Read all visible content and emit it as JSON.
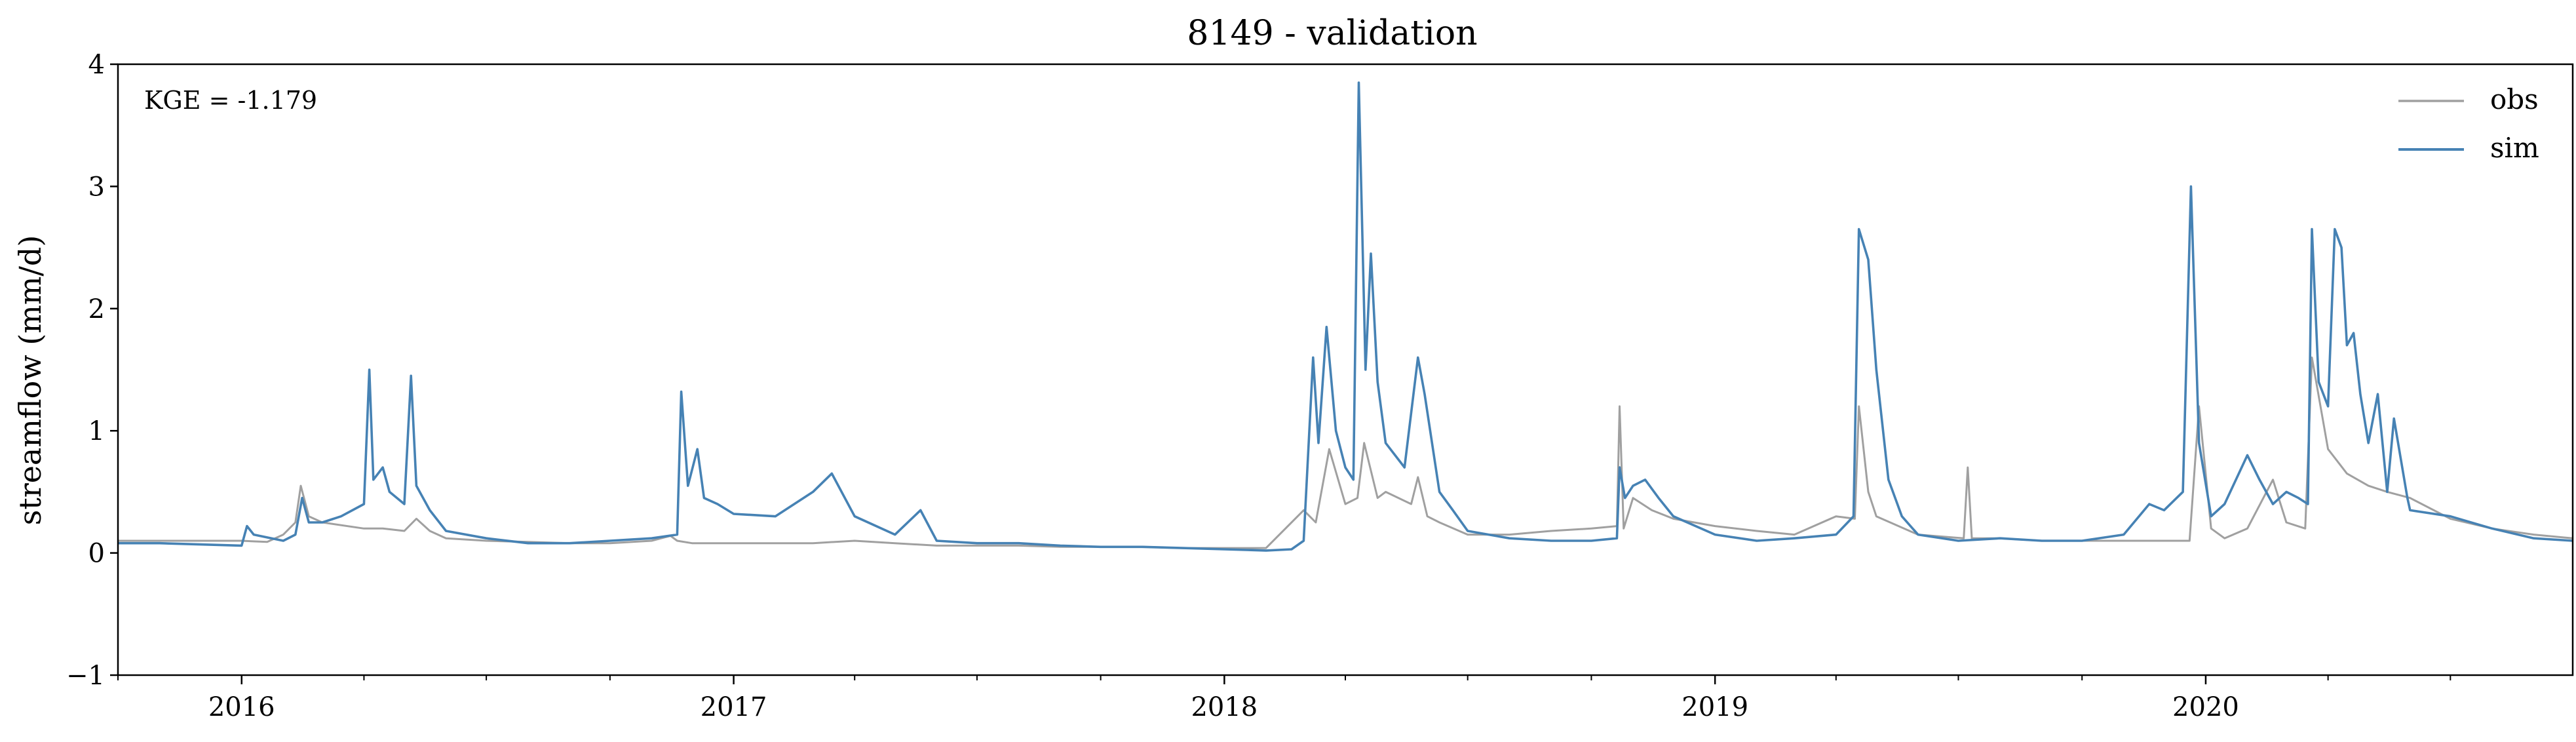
{
  "chart_data": {
    "type": "line",
    "title": "8149 - validation",
    "xlabel": "",
    "ylabel": "streamflow (mm/d)",
    "xlim": [
      "2015-10-01",
      "2020-09-30"
    ],
    "ylim": [
      -1,
      4
    ],
    "x_ticks": [
      "2016",
      "2017",
      "2018",
      "2019",
      "2020"
    ],
    "y_ticks": [
      "−1",
      "0",
      "1",
      "2",
      "3",
      "4"
    ],
    "annotation": "KGE = -1.179",
    "legend": {
      "position": "top-right",
      "entries": [
        "obs",
        "sim"
      ]
    },
    "grid": false,
    "series": [
      {
        "name": "obs",
        "color": "#a0a0a0",
        "x": [
          "2015-10-01",
          "2015-11-01",
          "2015-12-01",
          "2016-01-01",
          "2016-01-20",
          "2016-02-01",
          "2016-02-10",
          "2016-02-14",
          "2016-02-20",
          "2016-03-01",
          "2016-04-01",
          "2016-04-15",
          "2016-05-01",
          "2016-05-10",
          "2016-05-20",
          "2016-06-01",
          "2016-07-01",
          "2016-08-01",
          "2016-09-01",
          "2016-10-01",
          "2016-11-01",
          "2016-11-15",
          "2016-11-20",
          "2016-12-01",
          "2017-01-01",
          "2017-02-01",
          "2017-03-01",
          "2017-04-01",
          "2017-05-01",
          "2017-06-01",
          "2017-07-01",
          "2017-08-01",
          "2017-09-01",
          "2017-10-01",
          "2017-11-01",
          "2017-12-01",
          "2018-01-01",
          "2018-02-01",
          "2018-03-01",
          "2018-03-10",
          "2018-03-20",
          "2018-04-01",
          "2018-04-10",
          "2018-04-15",
          "2018-04-25",
          "2018-05-01",
          "2018-05-20",
          "2018-05-25",
          "2018-06-01",
          "2018-06-10",
          "2018-07-01",
          "2018-08-01",
          "2018-09-01",
          "2018-10-01",
          "2018-10-20",
          "2018-10-22",
          "2018-10-25",
          "2018-11-01",
          "2018-11-15",
          "2018-12-01",
          "2019-01-01",
          "2019-02-01",
          "2019-03-01",
          "2019-04-01",
          "2019-04-15",
          "2019-04-18",
          "2019-04-25",
          "2019-05-01",
          "2019-06-01",
          "2019-07-05",
          "2019-07-08",
          "2019-07-11",
          "2019-08-01",
          "2019-09-01",
          "2019-10-01",
          "2019-11-01",
          "2019-12-01",
          "2019-12-20",
          "2019-12-27",
          "2020-01-05",
          "2020-01-15",
          "2020-02-01",
          "2020-02-20",
          "2020-03-01",
          "2020-03-15",
          "2020-03-20",
          "2020-04-01",
          "2020-04-15",
          "2020-05-01",
          "2020-05-15",
          "2020-06-01",
          "2020-07-01",
          "2020-08-01",
          "2020-09-01",
          "2020-09-30"
        ],
        "y": [
          0.1,
          0.1,
          0.1,
          0.1,
          0.09,
          0.15,
          0.25,
          0.55,
          0.3,
          0.25,
          0.2,
          0.2,
          0.18,
          0.28,
          0.18,
          0.12,
          0.1,
          0.09,
          0.08,
          0.08,
          0.1,
          0.14,
          0.1,
          0.08,
          0.08,
          0.08,
          0.08,
          0.1,
          0.08,
          0.06,
          0.06,
          0.06,
          0.05,
          0.05,
          0.05,
          0.04,
          0.04,
          0.04,
          0.35,
          0.25,
          0.85,
          0.4,
          0.45,
          0.9,
          0.45,
          0.5,
          0.4,
          0.62,
          0.3,
          0.25,
          0.15,
          0.15,
          0.18,
          0.2,
          0.22,
          1.2,
          0.2,
          0.45,
          0.35,
          0.28,
          0.22,
          0.18,
          0.15,
          0.3,
          0.28,
          1.2,
          0.5,
          0.3,
          0.15,
          0.12,
          0.7,
          0.12,
          0.12,
          0.1,
          0.1,
          0.1,
          0.1,
          0.1,
          1.2,
          0.2,
          0.12,
          0.2,
          0.6,
          0.25,
          0.2,
          1.6,
          0.85,
          0.65,
          0.55,
          0.5,
          0.45,
          0.28,
          0.2,
          0.15,
          0.12
        ]
      },
      {
        "name": "sim",
        "color": "#4682b4",
        "x": [
          "2015-10-01",
          "2015-11-01",
          "2015-12-01",
          "2016-01-01",
          "2016-01-05",
          "2016-01-10",
          "2016-02-01",
          "2016-02-10",
          "2016-02-15",
          "2016-02-20",
          "2016-03-01",
          "2016-03-15",
          "2016-04-01",
          "2016-04-05",
          "2016-04-08",
          "2016-04-15",
          "2016-04-20",
          "2016-05-01",
          "2016-05-06",
          "2016-05-10",
          "2016-05-20",
          "2016-06-01",
          "2016-07-01",
          "2016-08-01",
          "2016-09-01",
          "2016-10-01",
          "2016-11-01",
          "2016-11-20",
          "2016-11-23",
          "2016-11-28",
          "2016-12-05",
          "2016-12-10",
          "2016-12-20",
          "2017-01-01",
          "2017-02-01",
          "2017-03-01",
          "2017-03-15",
          "2017-04-01",
          "2017-05-01",
          "2017-05-20",
          "2017-06-01",
          "2017-07-01",
          "2017-08-01",
          "2017-09-01",
          "2017-10-01",
          "2017-11-01",
          "2017-12-01",
          "2018-01-01",
          "2018-02-01",
          "2018-02-20",
          "2018-03-01",
          "2018-03-08",
          "2018-03-12",
          "2018-03-18",
          "2018-03-25",
          "2018-04-01",
          "2018-04-07",
          "2018-04-11",
          "2018-04-16",
          "2018-04-20",
          "2018-04-25",
          "2018-05-01",
          "2018-05-15",
          "2018-05-25",
          "2018-05-30",
          "2018-06-10",
          "2018-06-20",
          "2018-07-01",
          "2018-08-01",
          "2018-09-01",
          "2018-10-01",
          "2018-10-20",
          "2018-10-22",
          "2018-10-26",
          "2018-11-01",
          "2018-11-10",
          "2018-11-20",
          "2018-12-01",
          "2019-01-01",
          "2019-02-01",
          "2019-03-01",
          "2019-04-01",
          "2019-04-14",
          "2019-04-18",
          "2019-04-25",
          "2019-05-01",
          "2019-05-10",
          "2019-05-20",
          "2019-06-01",
          "2019-07-01",
          "2019-08-01",
          "2019-09-01",
          "2019-10-01",
          "2019-11-01",
          "2019-11-20",
          "2019-12-01",
          "2019-12-15",
          "2019-12-21",
          "2019-12-27",
          "2020-01-05",
          "2020-01-15",
          "2020-02-01",
          "2020-02-10",
          "2020-02-20",
          "2020-03-01",
          "2020-03-10",
          "2020-03-17",
          "2020-03-20",
          "2020-03-25",
          "2020-04-01",
          "2020-04-06",
          "2020-04-11",
          "2020-04-15",
          "2020-04-20",
          "2020-04-25",
          "2020-05-01",
          "2020-05-08",
          "2020-05-15",
          "2020-05-20",
          "2020-05-30",
          "2020-06-01",
          "2020-07-01",
          "2020-08-01",
          "2020-09-01",
          "2020-09-30"
        ],
        "y": [
          0.08,
          0.08,
          0.07,
          0.06,
          0.22,
          0.15,
          0.1,
          0.15,
          0.45,
          0.25,
          0.25,
          0.3,
          0.4,
          1.5,
          0.6,
          0.7,
          0.5,
          0.4,
          1.45,
          0.55,
          0.35,
          0.18,
          0.12,
          0.08,
          0.08,
          0.1,
          0.12,
          0.15,
          1.32,
          0.55,
          0.85,
          0.45,
          0.4,
          0.32,
          0.3,
          0.5,
          0.65,
          0.3,
          0.15,
          0.35,
          0.1,
          0.08,
          0.08,
          0.06,
          0.05,
          0.05,
          0.04,
          0.03,
          0.02,
          0.03,
          0.1,
          1.6,
          0.9,
          1.85,
          1.0,
          0.7,
          0.6,
          3.85,
          1.5,
          2.45,
          1.4,
          0.9,
          0.7,
          1.6,
          1.3,
          0.5,
          0.35,
          0.18,
          0.12,
          0.1,
          0.1,
          0.12,
          0.7,
          0.45,
          0.55,
          0.6,
          0.45,
          0.3,
          0.15,
          0.1,
          0.12,
          0.15,
          0.3,
          2.65,
          2.4,
          1.5,
          0.6,
          0.3,
          0.15,
          0.1,
          0.12,
          0.1,
          0.1,
          0.15,
          0.4,
          0.35,
          0.5,
          3.0,
          0.9,
          0.3,
          0.4,
          0.8,
          0.6,
          0.4,
          0.5,
          0.45,
          0.4,
          2.65,
          1.4,
          1.2,
          2.65,
          2.5,
          1.7,
          1.8,
          1.3,
          0.9,
          1.3,
          0.5,
          1.1,
          0.45,
          0.35,
          0.3,
          0.2,
          0.12,
          0.1
        ]
      }
    ]
  }
}
